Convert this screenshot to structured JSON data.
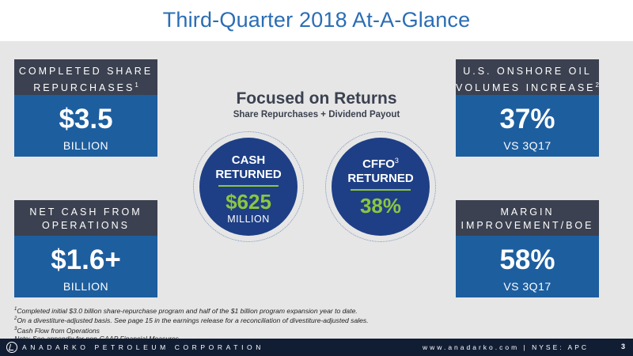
{
  "title": "Third-Quarter 2018 At-A-Glance",
  "center": {
    "title": "Focused on Returns",
    "subtitle": "Share Repurchases + Dividend Payout"
  },
  "cards": {
    "top_left": {
      "heading": "COMPLETED SHARE REPURCHASES",
      "footnote": "1",
      "value": "$3.5",
      "unit": "BILLION"
    },
    "bottom_left": {
      "heading": "NET CASH FROM OPERATIONS",
      "value": "$1.6+",
      "unit": "BILLION"
    },
    "top_right": {
      "heading": "U.S. ONSHORE OIL VOLUMES INCREASE",
      "footnote": "2",
      "value": "37%",
      "unit": "VS 3Q17"
    },
    "bottom_right": {
      "heading": "MARGIN IMPROVEMENT/BOE",
      "value": "58%",
      "unit": "VS 3Q17"
    }
  },
  "circles": {
    "cash": {
      "label_line1": "CASH",
      "label_line2": "RETURNED",
      "value": "$625",
      "unit": "MILLION"
    },
    "cffo": {
      "label_line1": "CFFO",
      "footnote": "3",
      "label_line2": "RETURNED",
      "value": "38%"
    }
  },
  "footnotes": [
    {
      "mark": "1",
      "text": "Completed initial $3.0 billion share-repurchase program and half of the $1 billion program expansion year to date."
    },
    {
      "mark": "2",
      "text": "On a divestiture-adjusted basis. See page 15 in the earnings release for a reconciliation of divestiture-adjusted sales."
    },
    {
      "mark": "3",
      "text": "Cash Flow from Operations"
    },
    {
      "mark": "",
      "text": "Note: See appendix for non-GAAP Financial Measures."
    }
  ],
  "footer": {
    "company": "ANADARKO PETROLEUM CORPORATION",
    "site": "www.anadarko.com | NYSE: APC",
    "page": "3"
  },
  "colors": {
    "title_blue": "#2a6db5",
    "card_header": "#3b4150",
    "card_body": "#1d5e9f",
    "circle_navy": "#1e3f86",
    "accent_green": "#8cc63f",
    "footer_navy": "#111d33"
  }
}
